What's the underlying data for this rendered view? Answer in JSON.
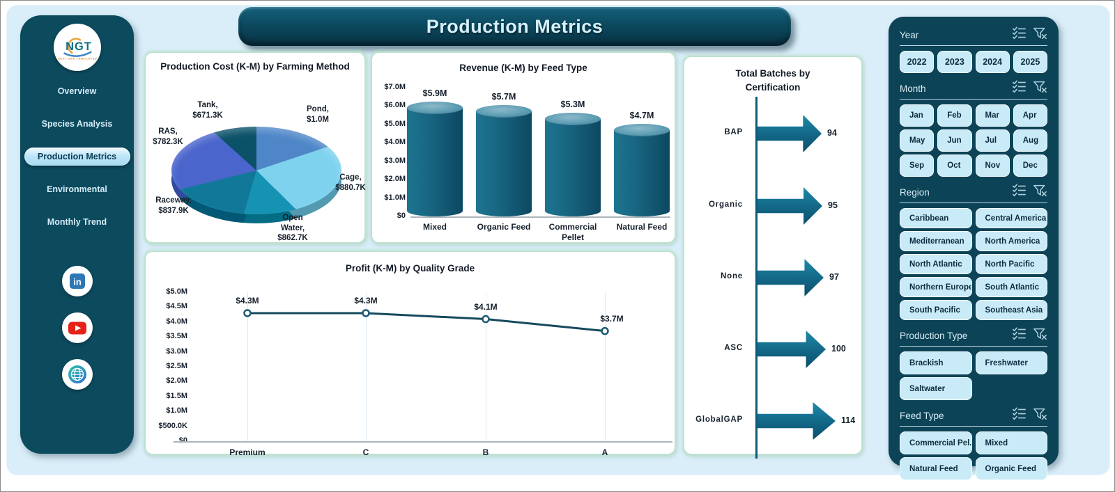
{
  "theme": {
    "background": "#D9EEF8",
    "sidebar_bg": "#0C4A5E",
    "panel_bg": "#0D4356",
    "card_border": "#BEE2CE",
    "button_bg": "#C9EAF7",
    "button_text": "#0A2C3E",
    "accent_teal": "#11688A",
    "banner_text": "#D6F0FA"
  },
  "page": {
    "title": "Production Metrics"
  },
  "sidebar": {
    "logo": {
      "text": "NGT",
      "caption": "NEXT GEN TEMPLATES"
    },
    "items": [
      {
        "label": "Overview",
        "active": false
      },
      {
        "label": "Species Analysis",
        "active": false
      },
      {
        "label": "Production Metrics",
        "active": true
      },
      {
        "label": "Environmental",
        "active": false
      },
      {
        "label": "Monthly Trend",
        "active": false
      }
    ],
    "social": [
      {
        "name": "linkedin"
      },
      {
        "name": "youtube"
      },
      {
        "name": "website"
      }
    ]
  },
  "chart_data": [
    {
      "type": "pie",
      "style": "3d",
      "title": "Production Cost (K-M) by Farming Method",
      "unit": "$K",
      "labels": [
        "Pond",
        "Cage",
        "Open Water",
        "Raceway",
        "RAS",
        "Tank"
      ],
      "values": [
        1000,
        880.7,
        862.7,
        837.9,
        782.3,
        671.3
      ],
      "label_lines": [
        [
          "Pond,",
          "$1.0M"
        ],
        [
          "Cage,",
          "$880.7K"
        ],
        [
          "Open",
          "Water,",
          "$862.7K"
        ],
        [
          "Raceway,",
          "$837.9K"
        ],
        [
          "RAS,",
          "$782.3K"
        ],
        [
          "Tank,",
          "$671.3K"
        ]
      ],
      "colors": [
        "#4E86C8",
        "#7ED2EE",
        "#1693B2",
        "#11789A",
        "#4A65CC",
        "#0B5168"
      ],
      "start_angle_deg": 0,
      "clockwise": true,
      "legend": "none"
    },
    {
      "type": "bar",
      "style": "cylinder-3d",
      "title": "Revenue (K-M) by Feed Type",
      "categories": [
        "Mixed",
        "Organic Feed",
        "Commercial Pellet",
        "Natural Feed"
      ],
      "values": [
        5.9,
        5.7,
        5.3,
        4.7
      ],
      "data_labels": [
        "$5.9M",
        "$5.7M",
        "$5.3M",
        "$4.7M"
      ],
      "ylim": [
        0,
        7
      ],
      "yticks": [
        "$7.0M",
        "$6.0M",
        "$5.0M",
        "$4.0M",
        "$3.0M",
        "$2.0M",
        "$1.0M",
        "$0"
      ],
      "grid": false
    },
    {
      "type": "line",
      "title": "Profit (K-M) by Quality Grade",
      "categories": [
        "Premium",
        "C",
        "B",
        "A"
      ],
      "values": [
        4.3,
        4.3,
        4.1,
        3.7
      ],
      "data_labels": [
        "$4.3M",
        "$4.3M",
        "$4.1M",
        "$3.7M"
      ],
      "ylim": [
        0,
        5
      ],
      "yticks": [
        "$5.0M",
        "$4.5M",
        "$4.0M",
        "$3.5M",
        "$3.0M",
        "$2.5M",
        "$2.0M",
        "$1.5M",
        "$1.0M",
        "$500.0K",
        "$0"
      ],
      "grid": "vertical",
      "marker": "circle",
      "line_color": "#17495e"
    },
    {
      "type": "bar",
      "subtype": "arrow",
      "orientation": "horizontal",
      "title": "Total Batches by Certification",
      "categories": [
        "BAP",
        "Organic",
        "None",
        "ASC",
        "GlobalGAP"
      ],
      "values": [
        94,
        95,
        97,
        100,
        114
      ]
    }
  ],
  "filters": {
    "header_icons": [
      {
        "name": "select-all-icon"
      },
      {
        "name": "clear-filter-icon"
      }
    ],
    "sections": [
      {
        "title": "Year",
        "columns": 4,
        "items": [
          "2022",
          "2023",
          "2024",
          "2025"
        ]
      },
      {
        "title": "Month",
        "columns": 4,
        "items": [
          "Jan",
          "Feb",
          "Mar",
          "Apr",
          "May",
          "Jun",
          "Jul",
          "Aug",
          "Sep",
          "Oct",
          "Nov",
          "Dec"
        ]
      },
      {
        "title": "Region",
        "columns": 2,
        "items": [
          "Caribbean",
          "Central America",
          "Mediterranean",
          "North America",
          "North Atlantic",
          "North Pacific",
          "Northern Europe",
          "South Atlantic",
          "South Pacific",
          "Southeast Asia"
        ]
      },
      {
        "title": "Production Type",
        "columns": 2,
        "items": [
          "Brackish",
          "Freshwater",
          "Saltwater"
        ]
      },
      {
        "title": "Feed Type",
        "columns": 2,
        "items": [
          "Commercial Pel...",
          "Mixed",
          "Natural Feed",
          "Organic Feed"
        ]
      }
    ]
  }
}
